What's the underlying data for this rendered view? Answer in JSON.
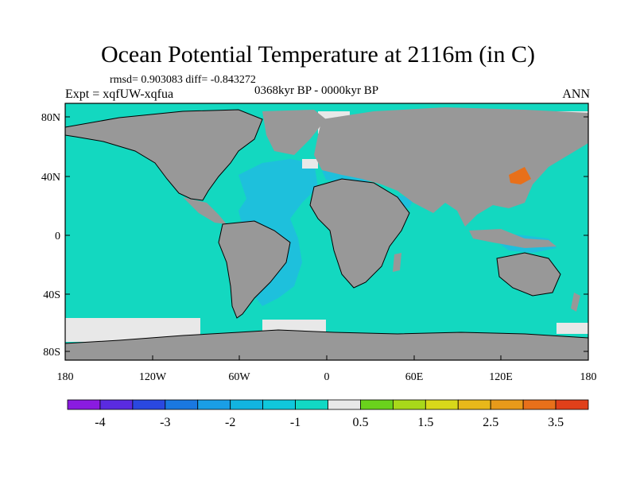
{
  "title": "Ocean Potential Temperature at 2116m (in C)",
  "stats": "rmsd= 0.903083 diff= -0.843272",
  "period": "0368kyr BP - 0000kyr BP",
  "expt": "Expt = xqfUW-xqfua",
  "season": "ANN",
  "axes": {
    "x_ticks": [
      "180",
      "120W",
      "60W",
      "0",
      "60E",
      "120E",
      "180"
    ],
    "y_ticks": [
      "80N",
      "40N",
      "0",
      "40S",
      "80S"
    ]
  },
  "colorbar": {
    "labels": [
      "-4",
      "-3",
      "-2",
      "-1",
      "0.5",
      "1.5",
      "2.5",
      "3.5"
    ],
    "colors": [
      "#8a1be0",
      "#5a2be0",
      "#2a48e0",
      "#1a78e0",
      "#1a9ee6",
      "#12b4e0",
      "#10c7dc",
      "#12d8c4",
      "#e8e8e8",
      "#6ad21c",
      "#a8d81a",
      "#d8d81a",
      "#e8b81a",
      "#e89a1a",
      "#e8701a",
      "#e0401a"
    ]
  },
  "colors": {
    "land": "#989898",
    "ocean_main": "#13d8c0",
    "ocean_atlantic": "#1ec0dc",
    "near_zero": "#e8e8e8",
    "warm_anomaly": "#e8701a"
  }
}
